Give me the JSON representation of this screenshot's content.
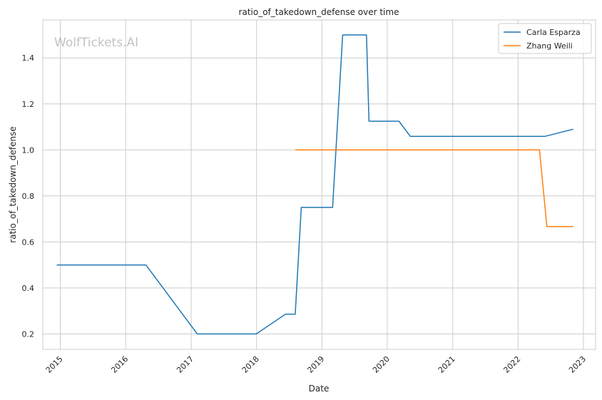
{
  "watermark": "WolfTickets.AI",
  "chart_data": {
    "type": "line",
    "title": "ratio_of_takedown_defense over time",
    "xlabel": "Date",
    "ylabel": "ratio_of_takedown_defense",
    "x_ticks": [
      "2015",
      "2016",
      "2017",
      "2018",
      "2019",
      "2020",
      "2021",
      "2022",
      "2023"
    ],
    "y_ticks": [
      "0.2",
      "0.4",
      "0.6",
      "0.8",
      "1.0",
      "1.2",
      "1.4"
    ],
    "xlim": [
      "2014-09-25",
      "2023-03-10"
    ],
    "ylim": [
      0.133,
      1.565
    ],
    "grid": true,
    "legend_position": "top-right",
    "series": [
      {
        "name": "Carla Esparza",
        "color": "#1f77b4",
        "x": [
          "2014-12-12",
          "2016-04-23",
          "2017-02-04",
          "2017-12-30",
          "2018-06-12",
          "2018-08-05",
          "2018-09-08",
          "2019-03-02",
          "2019-04-27",
          "2019-09-07",
          "2019-09-21",
          "2020-03-07",
          "2020-05-09",
          "2022-06-01",
          "2022-11-05"
        ],
        "y": [
          0.5,
          0.5,
          0.2,
          0.2,
          0.286,
          0.286,
          0.75,
          0.75,
          1.5,
          1.5,
          1.125,
          1.125,
          1.059,
          1.059,
          1.09
        ]
      },
      {
        "name": "Zhang Weili",
        "color": "#ff7f0e",
        "x": [
          "2018-08-05",
          "2022-05-01",
          "2022-06-11",
          "2022-11-05"
        ],
        "y": [
          1.0,
          1.0,
          0.667,
          0.667
        ]
      }
    ]
  }
}
